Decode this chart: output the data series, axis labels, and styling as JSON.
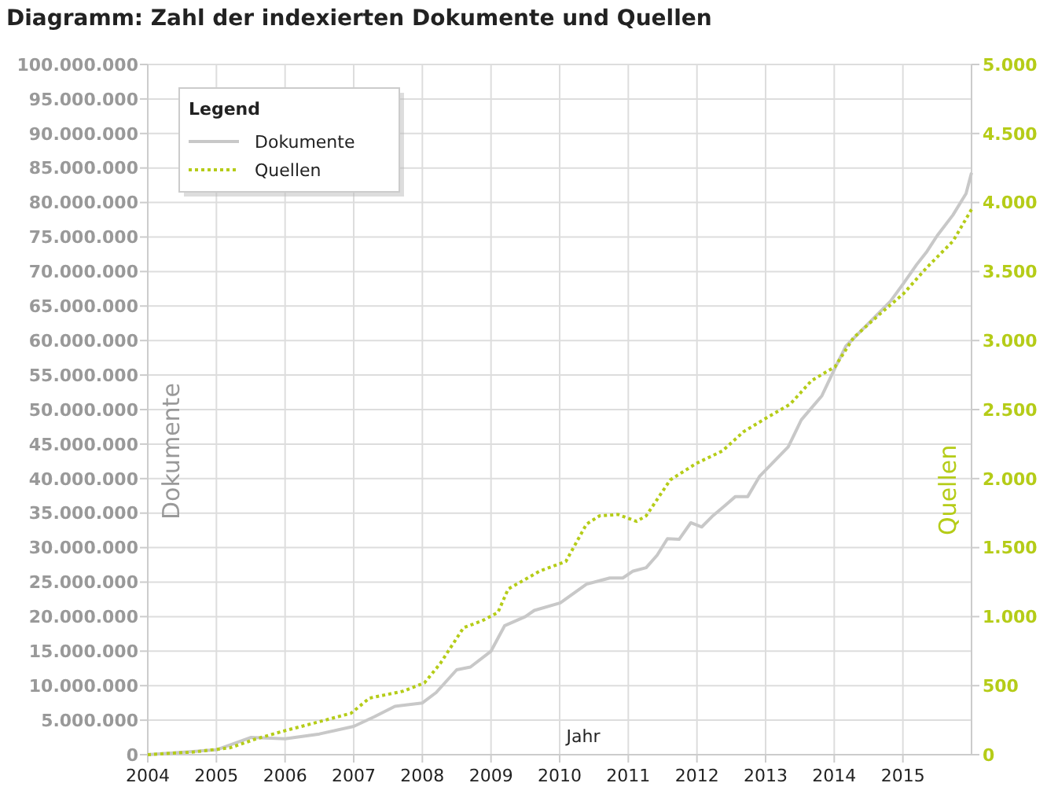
{
  "chart_data": {
    "type": "line",
    "title": "Diagramm: Zahl der indexierten Dokumente und Quellen",
    "xlabel": "Jahr",
    "ylabel": "Dokumente",
    "y2label": "Quellen",
    "legend_title": "Legend",
    "legend": "top left",
    "grid": true,
    "xlim": [
      2004,
      2016
    ],
    "xticks": [
      2004,
      2005,
      2006,
      2007,
      2008,
      2009,
      2010,
      2011,
      2012,
      2013,
      2014,
      2015
    ],
    "ylim": [
      0,
      100000000
    ],
    "yticks": [
      {
        "value": 0,
        "label": "0"
      },
      {
        "value": 5000000,
        "label": "5.000.000"
      },
      {
        "value": 10000000,
        "label": "10.000.000"
      },
      {
        "value": 15000000,
        "label": "15.000.000"
      },
      {
        "value": 20000000,
        "label": "20.000.000"
      },
      {
        "value": 25000000,
        "label": "25.000.000"
      },
      {
        "value": 30000000,
        "label": "30.000.000"
      },
      {
        "value": 35000000,
        "label": "35.000.000"
      },
      {
        "value": 40000000,
        "label": "40.000.000"
      },
      {
        "value": 45000000,
        "label": "45.000.000"
      },
      {
        "value": 50000000,
        "label": "50.000.000"
      },
      {
        "value": 55000000,
        "label": "55.000.000"
      },
      {
        "value": 60000000,
        "label": "60.000.000"
      },
      {
        "value": 65000000,
        "label": "65.000.000"
      },
      {
        "value": 70000000,
        "label": "70.000.000"
      },
      {
        "value": 75000000,
        "label": "75.000.000"
      },
      {
        "value": 80000000,
        "label": "80.000.000"
      },
      {
        "value": 85000000,
        "label": "85.000.000"
      },
      {
        "value": 90000000,
        "label": "90.000.000"
      },
      {
        "value": 95000000,
        "label": "95.000.000"
      },
      {
        "value": 100000000,
        "label": "100.000.000"
      }
    ],
    "y2lim": [
      0,
      5000
    ],
    "y2ticks": [
      0,
      500,
      {
        "value": 1000,
        "label": "1.000"
      },
      {
        "value": 1500,
        "label": "1.500"
      },
      {
        "value": 2000,
        "label": "2.000"
      },
      {
        "value": 2500,
        "label": "2.500"
      },
      {
        "value": 3000,
        "label": "3.000"
      },
      {
        "value": 3500,
        "label": "3.500"
      },
      {
        "value": 4000,
        "label": "4.000"
      },
      {
        "value": 4500,
        "label": "4.500"
      },
      {
        "value": 5000,
        "label": "5.000"
      }
    ],
    "series": [
      {
        "name": "Dokumente",
        "color": "#c8c8c8",
        "line_style": "solid",
        "x": [
          2004,
          2005,
          2005.5,
          2006,
          2006.5,
          2007,
          2007.3,
          2007.6,
          2008,
          2008.2,
          2008.5,
          2008.7,
          2009,
          2009.2,
          2009.5,
          2009.63,
          2010.01,
          2010.39,
          2010.73,
          2010.92,
          2011.07,
          2011.26,
          2011.42,
          2011.57,
          2011.74,
          2011.91,
          2012.07,
          2012.22,
          2012.41,
          2012.56,
          2012.74,
          2012.91,
          2013.33,
          2013.52,
          2013.82,
          2014.01,
          2014.17,
          2014.51,
          2014.82,
          2015.01,
          2015.2,
          2015.35,
          2015.5,
          2015.73,
          2015.92,
          2016
        ],
        "values": [
          0,
          700000,
          2500000,
          2300000,
          3000000,
          4100000,
          5500000,
          7000000,
          7500000,
          9000000,
          12300000,
          12700000,
          15000000,
          18700000,
          20000000,
          20900000,
          22000000,
          24700000,
          25600000,
          25600000,
          26600000,
          27100000,
          28900000,
          31300000,
          31200000,
          33600000,
          33000000,
          34500000,
          36100000,
          37400000,
          37400000,
          40300000,
          44600000,
          48500000,
          52000000,
          56000000,
          59200000,
          62600000,
          65700000,
          68300000,
          71000000,
          72900000,
          75200000,
          78200000,
          81300000,
          84300000
        ]
      },
      {
        "name": "Quellen",
        "color": "#b5cc18",
        "axis": "y2",
        "line_style": "dotted",
        "x": [
          2004,
          2004.67,
          2005.2,
          2005.55,
          2005.97,
          2006.43,
          2006.96,
          2007.23,
          2007.72,
          2008.03,
          2008.26,
          2008.6,
          2008.87,
          2009.1,
          2009.25,
          2009.71,
          2010.09,
          2010.39,
          2010.58,
          2010.85,
          2011.12,
          2011.26,
          2011.61,
          2011.99,
          2012.37,
          2012.68,
          2012.98,
          2013.36,
          2013.67,
          2014.01,
          2014.28,
          2014.66,
          2015.01,
          2015.35,
          2015.73,
          2016
        ],
        "values": [
          0,
          20,
          50,
          110,
          170,
          230,
          300,
          410,
          460,
          520,
          660,
          920,
          970,
          1030,
          1200,
          1330,
          1400,
          1670,
          1730,
          1740,
          1690,
          1730,
          1990,
          2110,
          2200,
          2340,
          2430,
          2540,
          2710,
          2810,
          3020,
          3190,
          3340,
          3530,
          3720,
          3950
        ]
      }
    ]
  }
}
